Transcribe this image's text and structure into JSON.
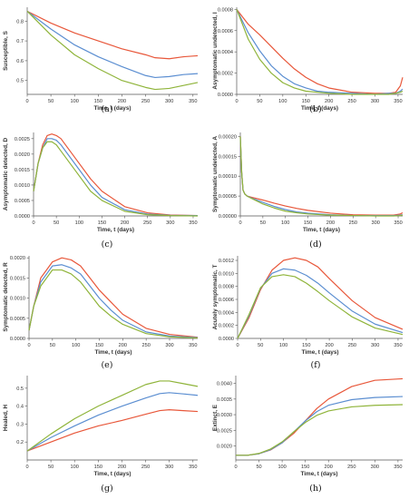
{
  "colors": {
    "s1": "#e8573a",
    "s2": "#5b8ed1",
    "s3": "#8fb43a",
    "axis": "#555555"
  },
  "chart_data": [
    {
      "panel_label": "(a)",
      "type": "line",
      "xlabel": "Time, t (days)",
      "ylabel": "Susceptible, S",
      "xlim": [
        0,
        360
      ],
      "ylim": [
        0.43,
        0.87
      ],
      "xticks": [
        "0",
        "50",
        "100",
        "150",
        "200",
        "250",
        "300",
        "350"
      ],
      "yticks": [
        {
          "v": 0.5,
          "t": "0.5"
        },
        {
          "v": 0.6,
          "t": "0.6"
        },
        {
          "v": 0.7,
          "t": "0.7"
        },
        {
          "v": 0.8,
          "t": "0.8"
        }
      ],
      "x": [
        0,
        50,
        100,
        150,
        200,
        250,
        270,
        300,
        330,
        360
      ],
      "series": [
        {
          "color": "s1",
          "values": [
            0.85,
            0.79,
            0.74,
            0.7,
            0.66,
            0.63,
            0.615,
            0.61,
            0.62,
            0.625
          ]
        },
        {
          "color": "s2",
          "values": [
            0.85,
            0.76,
            0.68,
            0.62,
            0.57,
            0.525,
            0.515,
            0.52,
            0.53,
            0.535
          ]
        },
        {
          "color": "s3",
          "values": [
            0.85,
            0.73,
            0.63,
            0.56,
            0.5,
            0.465,
            0.455,
            0.46,
            0.475,
            0.49
          ]
        }
      ]
    },
    {
      "panel_label": "(b)",
      "type": "line",
      "xlabel": "Time, t (days)",
      "ylabel": "Asymptomatic undetected, I",
      "xlim": [
        0,
        360
      ],
      "ylim": [
        0,
        0.00082
      ],
      "xticks": [
        "0",
        "50",
        "100",
        "150",
        "200",
        "250",
        "300",
        "350"
      ],
      "yticks": [
        {
          "v": 0,
          "t": "0.0000"
        },
        {
          "v": 0.0002,
          "t": "0.0002"
        },
        {
          "v": 0.0004,
          "t": "0.0004"
        },
        {
          "v": 0.0006,
          "t": "0.0006"
        },
        {
          "v": 0.0008,
          "t": "0.0008"
        }
      ],
      "x": [
        0,
        25,
        50,
        75,
        100,
        125,
        150,
        175,
        200,
        250,
        300,
        330,
        345,
        355,
        360
      ],
      "series": [
        {
          "color": "s1",
          "values": [
            0.0008,
            0.00066,
            0.00056,
            0.00045,
            0.00034,
            0.00024,
            0.00016,
            0.0001,
            6e-05,
            2e-05,
            1e-05,
            1e-05,
            2e-05,
            8e-05,
            0.00016
          ]
        },
        {
          "color": "s2",
          "values": [
            0.0008,
            0.00058,
            0.00041,
            0.00027,
            0.00017,
            0.0001,
            6e-05,
            3e-05,
            2e-05,
            1e-05,
            0,
            1e-05,
            1e-05,
            3e-05,
            5e-05
          ]
        },
        {
          "color": "s3",
          "values": [
            0.0008,
            0.00052,
            0.00033,
            0.0002,
            0.00011,
            6e-05,
            3e-05,
            2e-05,
            1e-05,
            0,
            0,
            0,
            1e-05,
            2e-05,
            3e-05
          ]
        }
      ]
    },
    {
      "panel_label": "(c)",
      "type": "line",
      "xlabel": "Time, t (days)",
      "ylabel": "Asymptomatic detected, D",
      "xlim": [
        0,
        360
      ],
      "ylim": [
        0,
        0.0027
      ],
      "xticks": [
        "0",
        "50",
        "100",
        "150",
        "200",
        "250",
        "300",
        "350"
      ],
      "yticks": [
        {
          "v": 0,
          "t": "0.0000"
        },
        {
          "v": 0.0005,
          "t": "0.0005"
        },
        {
          "v": 0.001,
          "t": "0.0010"
        },
        {
          "v": 0.0015,
          "t": "0.0015"
        },
        {
          "v": 0.002,
          "t": "0.0020"
        },
        {
          "v": 0.0025,
          "t": "0.0025"
        }
      ],
      "x": [
        0,
        10,
        20,
        30,
        40,
        50,
        60,
        80,
        100,
        125,
        150,
        200,
        250,
        300,
        360
      ],
      "series": [
        {
          "color": "s1",
          "values": [
            0.0008,
            0.0017,
            0.0023,
            0.0026,
            0.00265,
            0.0026,
            0.0025,
            0.0021,
            0.0017,
            0.0012,
            0.0008,
            0.0003,
            0.0001,
            3e-05,
            1e-05
          ]
        },
        {
          "color": "s2",
          "values": [
            0.0008,
            0.0017,
            0.0022,
            0.0025,
            0.0025,
            0.00245,
            0.0023,
            0.0019,
            0.0015,
            0.001,
            0.0006,
            0.0002,
            6e-05,
            2e-05,
            1e-05
          ]
        },
        {
          "color": "s3",
          "values": [
            0.0008,
            0.0017,
            0.0022,
            0.0024,
            0.0024,
            0.0023,
            0.0021,
            0.0017,
            0.0013,
            0.0008,
            0.0005,
            0.00015,
            4e-05,
            1e-05,
            0
          ]
        }
      ]
    },
    {
      "panel_label": "(d)",
      "type": "line",
      "xlabel": "Time, t (days)",
      "ylabel": "Symptomatic undetected, A",
      "xlim": [
        0,
        360
      ],
      "ylim": [
        0,
        0.00021
      ],
      "xticks": [
        "0",
        "50",
        "100",
        "150",
        "200",
        "250",
        "300",
        "350"
      ],
      "yticks": [
        {
          "v": 0,
          "t": "0.00000"
        },
        {
          "v": 5e-05,
          "t": "0.00005"
        },
        {
          "v": 0.0001,
          "t": "0.00010"
        },
        {
          "v": 0.00015,
          "t": "0.00015"
        },
        {
          "v": 0.0002,
          "t": "0.00020"
        }
      ],
      "x": [
        0,
        3,
        6,
        10,
        15,
        25,
        50,
        75,
        100,
        125,
        150,
        200,
        250,
        300,
        340,
        355,
        360
      ],
      "series": [
        {
          "color": "s1",
          "values": [
            0.0002,
            0.00011,
            6.5e-05,
            5.5e-05,
            5e-05,
            4.7e-05,
            4e-05,
            3.2e-05,
            2.5e-05,
            1.9e-05,
            1.4e-05,
            7e-06,
            3e-06,
            2e-06,
            2e-06,
            5e-06,
            8e-06
          ]
        },
        {
          "color": "s2",
          "values": [
            0.0002,
            0.00011,
            6.5e-05,
            5.5e-05,
            5e-05,
            4.5e-05,
            3.4e-05,
            2.4e-05,
            1.6e-05,
            1e-05,
            7e-06,
            3e-06,
            1e-06,
            1e-06,
            1e-06,
            2e-06,
            3e-06
          ]
        },
        {
          "color": "s3",
          "values": [
            0.0002,
            0.00011,
            6.5e-05,
            5.5e-05,
            5e-05,
            4.4e-05,
            3e-05,
            2e-05,
            1.2e-05,
            8e-06,
            5e-06,
            2e-06,
            1e-06,
            0,
            0,
            1e-06,
            2e-06
          ]
        }
      ]
    },
    {
      "panel_label": "(e)",
      "type": "line",
      "xlabel": "Time, t (days)",
      "ylabel": "Symptomatic detected, R",
      "xlim": [
        0,
        360
      ],
      "ylim": [
        0,
        0.00205
      ],
      "xticks": [
        "0",
        "50",
        "100",
        "150",
        "200",
        "250",
        "300",
        "350"
      ],
      "yticks": [
        {
          "v": 0,
          "t": "0.0000"
        },
        {
          "v": 0.0005,
          "t": "0.0005"
        },
        {
          "v": 0.001,
          "t": "0.0010"
        },
        {
          "v": 0.0015,
          "t": "0.0015"
        },
        {
          "v": 0.002,
          "t": "0.0020"
        }
      ],
      "x": [
        0,
        10,
        25,
        50,
        70,
        90,
        110,
        130,
        150,
        175,
        200,
        250,
        300,
        360
      ],
      "series": [
        {
          "color": "s1",
          "values": [
            0.0002,
            0.0008,
            0.0015,
            0.0019,
            0.002,
            0.00195,
            0.0018,
            0.0015,
            0.0012,
            0.0009,
            0.0006,
            0.00025,
            0.0001,
            3e-05
          ]
        },
        {
          "color": "s2",
          "values": [
            0.0002,
            0.0008,
            0.0014,
            0.0018,
            0.00183,
            0.00175,
            0.0016,
            0.0013,
            0.001,
            0.0007,
            0.00045,
            0.00016,
            6e-05,
            2e-05
          ]
        },
        {
          "color": "s3",
          "values": [
            0.0002,
            0.0008,
            0.0013,
            0.0017,
            0.0017,
            0.0016,
            0.0014,
            0.0011,
            0.0008,
            0.00055,
            0.00035,
            0.00012,
            4e-05,
            1e-05
          ]
        }
      ]
    },
    {
      "panel_label": "(f)",
      "type": "line",
      "xlabel": "Time, t (days)",
      "ylabel": "Acutely symptomatic, T",
      "xlim": [
        0,
        360
      ],
      "ylim": [
        0,
        0.00127
      ],
      "xticks": [
        "0",
        "50",
        "100",
        "150",
        "200",
        "250",
        "300",
        "350"
      ],
      "yticks": [
        {
          "v": 0,
          "t": "0.0000"
        },
        {
          "v": 0.0002,
          "t": "0.0002"
        },
        {
          "v": 0.0004,
          "t": "0.0004"
        },
        {
          "v": 0.0006,
          "t": "0.0006"
        },
        {
          "v": 0.0008,
          "t": "0.0008"
        },
        {
          "v": 0.001,
          "t": "0.0010"
        },
        {
          "v": 0.0012,
          "t": "0.0012"
        }
      ],
      "x": [
        0,
        25,
        50,
        75,
        100,
        125,
        150,
        175,
        200,
        250,
        300,
        360
      ],
      "series": [
        {
          "color": "s1",
          "values": [
            0,
            0.00032,
            0.00075,
            0.00105,
            0.0012,
            0.00124,
            0.0012,
            0.0011,
            0.00092,
            0.00058,
            0.00032,
            0.00014
          ]
        },
        {
          "color": "s2",
          "values": [
            0,
            0.00035,
            0.00077,
            0.001,
            0.00107,
            0.00105,
            0.00097,
            0.00085,
            0.0007,
            0.00042,
            0.00022,
            9e-05
          ]
        },
        {
          "color": "s3",
          "values": [
            0,
            0.00037,
            0.00078,
            0.00095,
            0.00098,
            0.00095,
            0.00085,
            0.00072,
            0.00058,
            0.00033,
            0.00016,
            6e-05
          ]
        }
      ]
    },
    {
      "panel_label": "(g)",
      "type": "line",
      "xlabel": "Time, t (days)",
      "ylabel": "Healed, H",
      "xlim": [
        0,
        360
      ],
      "ylim": [
        0.1,
        0.57
      ],
      "xticks": [
        "0",
        "50",
        "100",
        "150",
        "200",
        "250",
        "300",
        "350"
      ],
      "yticks": [
        {
          "v": 0.2,
          "t": "0.2"
        },
        {
          "v": 0.3,
          "t": "0.3"
        },
        {
          "v": 0.4,
          "t": "0.4"
        },
        {
          "v": 0.5,
          "t": "0.5"
        }
      ],
      "x": [
        0,
        50,
        100,
        150,
        200,
        250,
        280,
        300,
        330,
        360
      ],
      "series": [
        {
          "color": "s1",
          "values": [
            0.15,
            0.2,
            0.25,
            0.29,
            0.32,
            0.355,
            0.375,
            0.38,
            0.375,
            0.37
          ]
        },
        {
          "color": "s2",
          "values": [
            0.15,
            0.225,
            0.29,
            0.35,
            0.4,
            0.445,
            0.47,
            0.475,
            0.468,
            0.46
          ]
        },
        {
          "color": "s3",
          "values": [
            0.15,
            0.245,
            0.33,
            0.4,
            0.46,
            0.52,
            0.54,
            0.54,
            0.525,
            0.51
          ]
        }
      ]
    },
    {
      "panel_label": "(h)",
      "type": "line",
      "xlabel": "Time, t (days)",
      "ylabel": "Extinct, E",
      "xlim": [
        0,
        360
      ],
      "ylim": [
        0.00155,
        0.00425
      ],
      "xticks": [
        "0",
        "50",
        "100",
        "150",
        "200",
        "250",
        "300",
        "350"
      ],
      "yticks": [
        {
          "v": 0.002,
          "t": "0.0020"
        },
        {
          "v": 0.0025,
          "t": "0.0025"
        },
        {
          "v": 0.003,
          "t": "0.0030"
        },
        {
          "v": 0.0035,
          "t": "0.0035"
        },
        {
          "v": 0.004,
          "t": "0.0040"
        }
      ],
      "x": [
        0,
        25,
        50,
        75,
        100,
        125,
        150,
        175,
        200,
        250,
        300,
        360
      ],
      "series": [
        {
          "color": "s1",
          "values": [
            0.0017,
            0.0017,
            0.00175,
            0.00187,
            0.0021,
            0.0024,
            0.0028,
            0.0032,
            0.0035,
            0.0039,
            0.0041,
            0.00415
          ]
        },
        {
          "color": "s2",
          "values": [
            0.0017,
            0.0017,
            0.00175,
            0.00188,
            0.0021,
            0.00245,
            0.0028,
            0.0031,
            0.0033,
            0.00348,
            0.00355,
            0.00358
          ]
        },
        {
          "color": "s3",
          "values": [
            0.0017,
            0.0017,
            0.00176,
            0.0019,
            0.00213,
            0.00245,
            0.00275,
            0.00298,
            0.00312,
            0.00325,
            0.0033,
            0.00332
          ]
        }
      ]
    }
  ]
}
